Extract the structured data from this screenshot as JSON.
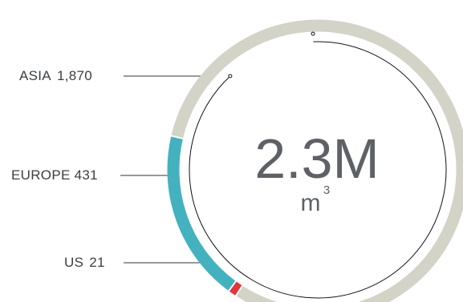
{
  "chart_data": {
    "type": "donut",
    "categories": [
      "ASIA",
      "EUROPE",
      "US"
    ],
    "series": [
      {
        "values": [
          1870,
          431,
          21
        ]
      }
    ],
    "labels": [
      {
        "name": "ASIA",
        "value": "1,870"
      },
      {
        "name": "EUROPE",
        "value": "431"
      },
      {
        "name": "US",
        "value": "21"
      }
    ],
    "center_value": "2.3M",
    "center_unit": "m",
    "center_unit_superscript": "3",
    "colors": {
      "ASIA": "#d3d3c8",
      "EUROPE": "#44b1bf",
      "US": "#e0353a",
      "leader": "#333333",
      "inner_ring": "#111111"
    }
  }
}
